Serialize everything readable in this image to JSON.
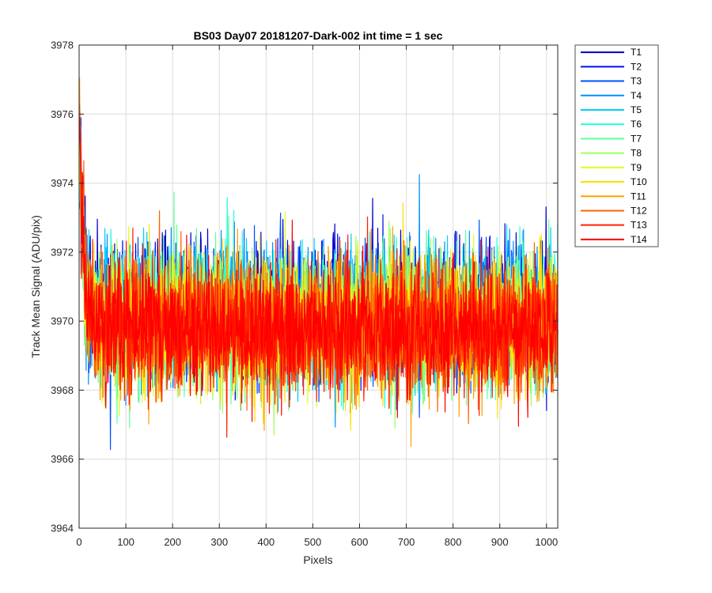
{
  "chart_data": {
    "type": "line",
    "title": "BS03 Day07 20181207-Dark-002 int time = 1 sec",
    "xlabel": "Pixels",
    "ylabel": "Track Mean Signal (ADU/pix)",
    "xlim": [
      0,
      1024
    ],
    "ylim": [
      3964,
      3978
    ],
    "xticks": [
      0,
      100,
      200,
      300,
      400,
      500,
      600,
      700,
      800,
      900,
      1000
    ],
    "yticks": [
      3964,
      3966,
      3968,
      3970,
      3972,
      3974,
      3976,
      3978
    ],
    "grid": true,
    "legend_position": "outside-top-right",
    "n_points_per_series": 1024,
    "series": [
      {
        "name": "T1",
        "color": "#0000c8",
        "mean": 3970.35,
        "spread": 0.95,
        "startup_peak": 3975.6
      },
      {
        "name": "T2",
        "color": "#0010f0",
        "mean": 3970.3,
        "spread": 0.95,
        "startup_peak": 3975.4
      },
      {
        "name": "T3",
        "color": "#0050ff",
        "mean": 3970.25,
        "spread": 0.95,
        "startup_peak": 3975.2
      },
      {
        "name": "T4",
        "color": "#0090ff",
        "mean": 3970.2,
        "spread": 0.95,
        "startup_peak": 3975.0
      },
      {
        "name": "T5",
        "color": "#00d0ff",
        "mean": 3970.15,
        "spread": 0.95,
        "startup_peak": 3974.9
      },
      {
        "name": "T6",
        "color": "#20ffe0",
        "mean": 3970.1,
        "spread": 0.95,
        "startup_peak": 3974.8
      },
      {
        "name": "T7",
        "color": "#60ffa0",
        "mean": 3970.05,
        "spread": 0.95,
        "startup_peak": 3974.8
      },
      {
        "name": "T8",
        "color": "#a0ff60",
        "mean": 3970.0,
        "spread": 0.95,
        "startup_peak": 3974.9
      },
      {
        "name": "T9",
        "color": "#e0ff20",
        "mean": 3969.95,
        "spread": 0.95,
        "startup_peak": 3975.1
      },
      {
        "name": "T10",
        "color": "#ffe000",
        "mean": 3969.9,
        "spread": 0.95,
        "startup_peak": 3975.4
      },
      {
        "name": "T11",
        "color": "#ffa000",
        "mean": 3969.85,
        "spread": 0.95,
        "startup_peak": 3975.8
      },
      {
        "name": "T12",
        "color": "#ff6000",
        "mean": 3969.8,
        "spread": 0.95,
        "startup_peak": 3976.2
      },
      {
        "name": "T13",
        "color": "#ff2000",
        "mean": 3969.75,
        "spread": 0.95,
        "startup_peak": 3975.9
      },
      {
        "name": "T14",
        "color": "#ff0000",
        "mean": 3969.75,
        "spread": 0.9,
        "startup_peak": 3975.0
      }
    ]
  }
}
